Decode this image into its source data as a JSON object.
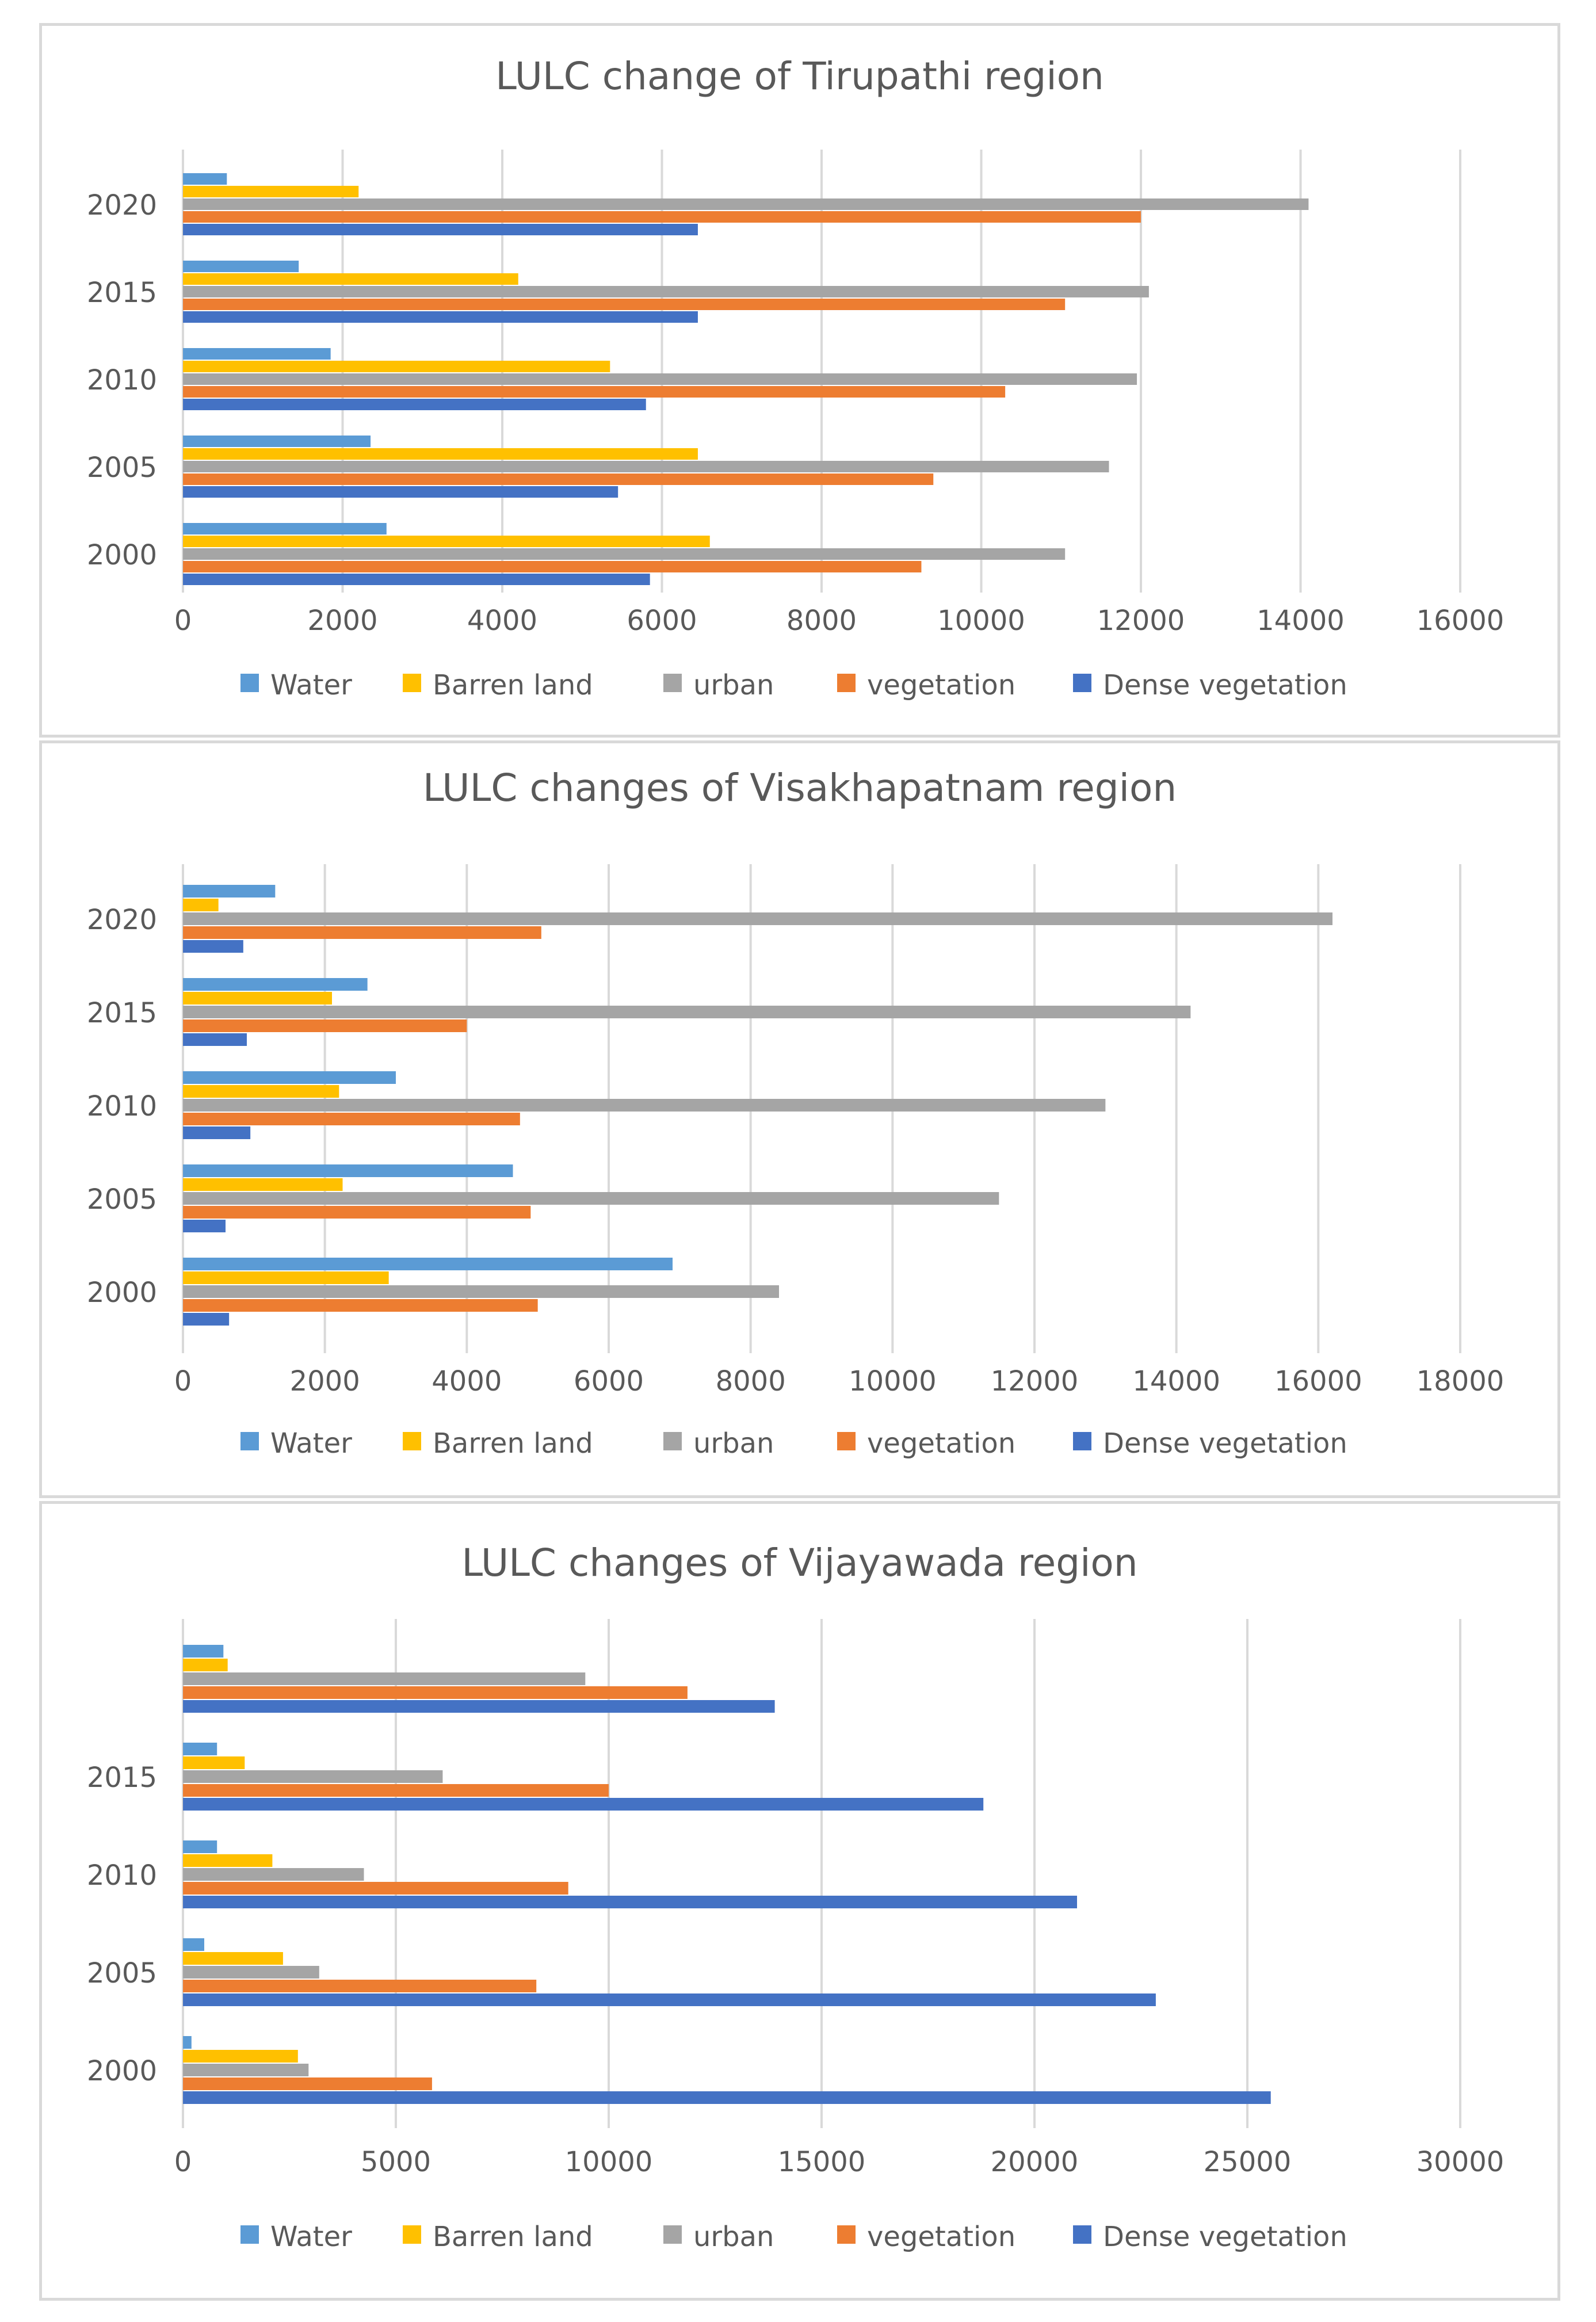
{
  "series_colors": {
    "Water": "#5b9bd5",
    "Barren land": "#ffc000",
    "urban": "#a5a5a5",
    "vegetation": "#ed7d31",
    "Dense vegetation": "#4472c4"
  },
  "chart_data": [
    {
      "type": "bar",
      "orientation": "horizontal",
      "title": "LULC change of Tirupathi region",
      "categories": [
        "2020",
        "2015",
        "2010",
        "2005",
        "2000"
      ],
      "series": [
        {
          "name": "Water",
          "values": [
            550,
            1450,
            1850,
            2350,
            2550
          ]
        },
        {
          "name": "Barren land",
          "values": [
            2200,
            4200,
            5350,
            6450,
            6600
          ]
        },
        {
          "name": "urban",
          "values": [
            14100,
            12100,
            11950,
            11600,
            11050
          ]
        },
        {
          "name": "vegetation",
          "values": [
            12000,
            11050,
            10300,
            9400,
            9250
          ]
        },
        {
          "name": "Dense vegetation",
          "values": [
            6450,
            6450,
            5800,
            5450,
            5850
          ]
        }
      ],
      "xticks": [
        "0",
        "2000",
        "4000",
        "6000",
        "8000",
        "10000",
        "12000",
        "14000",
        "16000"
      ],
      "xlim": [
        0,
        16000
      ],
      "legend": [
        "Water",
        "Barren land",
        "urban",
        "vegetation",
        "Dense vegetation"
      ],
      "legend_position": "bottom"
    },
    {
      "type": "bar",
      "orientation": "horizontal",
      "title": "LULC changes of Visakhapatnam region",
      "categories": [
        "2020",
        "2015",
        "2010",
        "2005",
        "2000"
      ],
      "series": [
        {
          "name": "Water",
          "values": [
            1300,
            2600,
            3000,
            4650,
            6900
          ]
        },
        {
          "name": "Barren land",
          "values": [
            500,
            2100,
            2200,
            2250,
            2900
          ]
        },
        {
          "name": "urban",
          "values": [
            16200,
            14200,
            13000,
            11500,
            8400
          ]
        },
        {
          "name": "vegetation",
          "values": [
            5050,
            4000,
            4750,
            4900,
            5000
          ]
        },
        {
          "name": "Dense vegetation",
          "values": [
            850,
            900,
            950,
            600,
            650
          ]
        }
      ],
      "xticks": [
        "0",
        "2000",
        "4000",
        "6000",
        "8000",
        "10000",
        "12000",
        "14000",
        "16000",
        "18000"
      ],
      "xlim": [
        0,
        18000
      ],
      "legend": [
        "Water",
        "Barren land",
        "urban",
        "vegetation",
        "Dense vegetation"
      ],
      "legend_position": "bottom"
    },
    {
      "type": "bar",
      "orientation": "horizontal",
      "title": "LULC changes of Vijayawada region",
      "categories": [
        "",
        "2015",
        "2010",
        "2005",
        "2000"
      ],
      "series": [
        {
          "name": "Water",
          "values": [
            950,
            800,
            800,
            500,
            200
          ]
        },
        {
          "name": "Barren land",
          "values": [
            1050,
            1450,
            2100,
            2350,
            2700
          ]
        },
        {
          "name": "urban",
          "values": [
            9450,
            6100,
            4250,
            3200,
            2950
          ]
        },
        {
          "name": "vegetation",
          "values": [
            11850,
            10000,
            9050,
            8300,
            5850
          ]
        },
        {
          "name": "Dense vegetation",
          "values": [
            13900,
            18800,
            21000,
            22850,
            25550
          ]
        }
      ],
      "xticks": [
        "0",
        "5000",
        "10000",
        "15000",
        "20000",
        "25000",
        "30000"
      ],
      "xlim": [
        0,
        30000
      ],
      "legend": [
        "Water",
        "Barren land",
        "urban",
        "vegetation",
        "Dense vegetation"
      ],
      "legend_position": "bottom"
    }
  ]
}
